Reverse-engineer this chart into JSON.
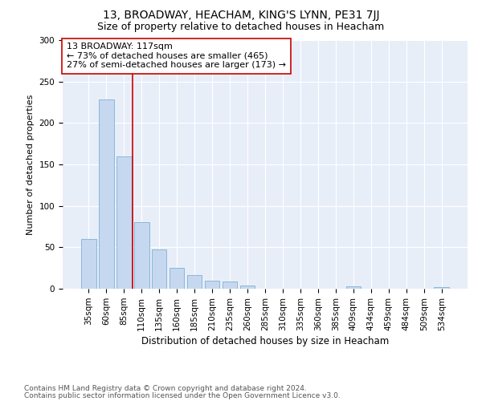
{
  "title1": "13, BROADWAY, HEACHAM, KING'S LYNN, PE31 7JJ",
  "title2": "Size of property relative to detached houses in Heacham",
  "xlabel": "Distribution of detached houses by size in Heacham",
  "ylabel": "Number of detached properties",
  "categories": [
    "35sqm",
    "60sqm",
    "85sqm",
    "110sqm",
    "135sqm",
    "160sqm",
    "185sqm",
    "210sqm",
    "235sqm",
    "260sqm",
    "285sqm",
    "310sqm",
    "335sqm",
    "360sqm",
    "385sqm",
    "409sqm",
    "434sqm",
    "459sqm",
    "484sqm",
    "509sqm",
    "534sqm"
  ],
  "values": [
    60,
    228,
    160,
    80,
    47,
    25,
    16,
    10,
    9,
    4,
    0,
    0,
    0,
    0,
    0,
    3,
    0,
    0,
    0,
    0,
    2
  ],
  "bar_color": "#c5d8f0",
  "bar_edge_color": "#7fafd4",
  "highlight_line_color": "#cc0000",
  "annotation_text": "13 BROADWAY: 117sqm\n← 73% of detached houses are smaller (465)\n27% of semi-detached houses are larger (173) →",
  "annotation_box_color": "#ffffff",
  "annotation_box_edge": "#cc0000",
  "ylim": [
    0,
    300
  ],
  "yticks": [
    0,
    50,
    100,
    150,
    200,
    250,
    300
  ],
  "bg_color": "#e8eef8",
  "footer1": "Contains HM Land Registry data © Crown copyright and database right 2024.",
  "footer2": "Contains public sector information licensed under the Open Government Licence v3.0.",
  "title1_fontsize": 10,
  "title2_fontsize": 9,
  "annotation_fontsize": 8,
  "axis_label_fontsize": 8.5,
  "ylabel_fontsize": 8,
  "tick_fontsize": 7.5,
  "footer_fontsize": 6.5
}
